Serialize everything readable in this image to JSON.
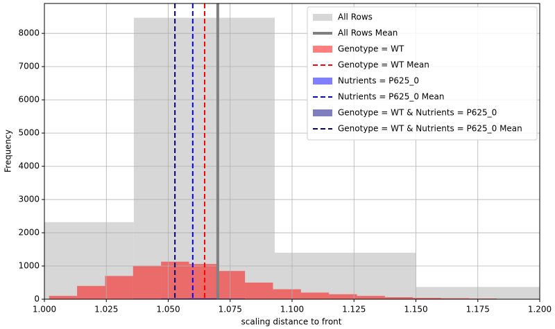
{
  "chart_data": {
    "type": "histogram",
    "xlabel": "scaling distance to front",
    "ylabel": "Frequency",
    "xlim": [
      1.0,
      1.2
    ],
    "ylim": [
      0,
      8900
    ],
    "xticks": [
      {
        "value": 1.0,
        "label": "1.000"
      },
      {
        "value": 1.025,
        "label": "1.025"
      },
      {
        "value": 1.05,
        "label": "1.050"
      },
      {
        "value": 1.075,
        "label": "1.075"
      },
      {
        "value": 1.1,
        "label": "1.100"
      },
      {
        "value": 1.125,
        "label": "1.125"
      },
      {
        "value": 1.15,
        "label": "1.150"
      },
      {
        "value": 1.175,
        "label": "1.175"
      },
      {
        "value": 1.2,
        "label": "1.200"
      }
    ],
    "yticks": [
      0,
      1000,
      2000,
      3000,
      4000,
      5000,
      6000,
      7000,
      8000
    ],
    "grid": true,
    "legend": "upper right",
    "series": [
      {
        "name": "All Rows",
        "kind": "bars",
        "color": "#d3d3d3",
        "opacity": 0.9,
        "bins": [
          0.9792,
          1.0361,
          1.093,
          1.1499,
          1.2068
        ],
        "values": [
          2320,
          8470,
          1400,
          370
        ]
      },
      {
        "name": "All Rows Mean",
        "kind": "mean",
        "color": "#808080",
        "linestyle": "solid",
        "x": 1.07
      },
      {
        "name": "Genotype = WT",
        "kind": "bars",
        "color": "#ff0000",
        "opacity": 0.5,
        "bins": [
          1.0019,
          1.0132,
          1.0245,
          1.0358,
          1.0471,
          1.0584,
          1.0697,
          1.081,
          1.0923,
          1.1036,
          1.1149,
          1.1262,
          1.1375,
          1.1488,
          1.1601,
          1.1714,
          1.1827,
          1.194,
          1.2053
        ],
        "values": [
          100,
          400,
          700,
          1010,
          1130,
          1060,
          850,
          500,
          300,
          200,
          150,
          100,
          60,
          40,
          30,
          20,
          10,
          5
        ]
      },
      {
        "name": "Genotype = WT Mean",
        "kind": "mean",
        "color": "#ff0000",
        "linestyle": "dashed",
        "x": 1.0647
      },
      {
        "name": "Nutrients = P625_0",
        "kind": "bars",
        "color": "#0000ff",
        "opacity": 0.5,
        "bins": [
          1.0019,
          1.0132,
          1.0245,
          1.0358,
          1.0471,
          1.0584,
          1.0697,
          1.081,
          1.0923,
          1.1036,
          1.1149,
          1.1262,
          1.1375,
          1.1488,
          1.1601,
          1.1714,
          1.1827,
          1.194,
          1.2053
        ],
        "values": [
          0,
          3,
          8,
          15,
          22,
          25,
          18,
          10,
          5,
          3,
          2,
          1,
          1,
          0,
          0,
          0,
          0,
          0
        ]
      },
      {
        "name": "Nutrients = P625_0 Mean",
        "kind": "mean",
        "color": "#0000ff",
        "linestyle": "dashed",
        "x": 1.0599
      },
      {
        "name": "Genotype = WT & Nutrients = P625_0",
        "kind": "bars",
        "color": "#000080",
        "opacity": 0.5,
        "bins": [
          1.0019,
          1.0132,
          1.0245,
          1.0358,
          1.0471,
          1.0584,
          1.0697,
          1.081,
          1.0923,
          1.1036,
          1.1149,
          1.1262,
          1.1375,
          1.1488,
          1.1601,
          1.1714,
          1.1827,
          1.194,
          1.2053
        ],
        "values": [
          0,
          2,
          5,
          10,
          15,
          18,
          12,
          7,
          3,
          2,
          1,
          1,
          0,
          0,
          0,
          0,
          0,
          0
        ]
      },
      {
        "name": "Genotype = WT & Nutrients = P625_0 Mean",
        "kind": "mean",
        "color": "#000080",
        "linestyle": "dashed",
        "x": 1.0527
      }
    ]
  }
}
